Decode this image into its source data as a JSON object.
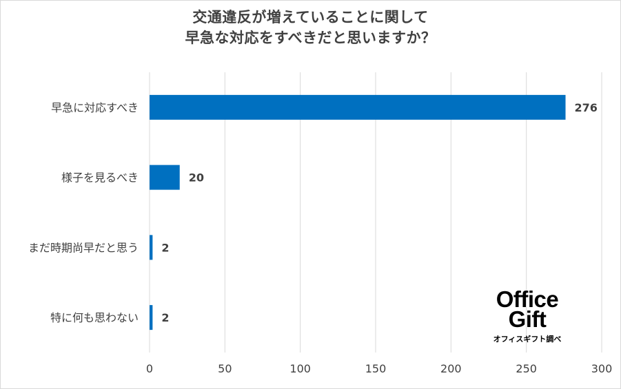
{
  "chart_data": {
    "type": "bar",
    "orientation": "horizontal",
    "title_lines": [
      "交通違反が増えていることに関して",
      "早急な対応をすべきだと思いますか？"
    ],
    "categories": [
      "早急に対応すべき",
      "様子を見るべき",
      "まだ時期尚早だと思う",
      "特に何も思わない"
    ],
    "values": [
      276,
      20,
      2,
      2
    ],
    "xlim": [
      0,
      300
    ],
    "x_ticks": [
      0,
      50,
      100,
      150,
      200,
      250,
      300
    ],
    "grid": true,
    "bar_color": "#0070c0",
    "data_labels": true
  },
  "logo": {
    "line1": "Office",
    "line2": "Gift",
    "caption": "オフィスギフト調べ"
  }
}
